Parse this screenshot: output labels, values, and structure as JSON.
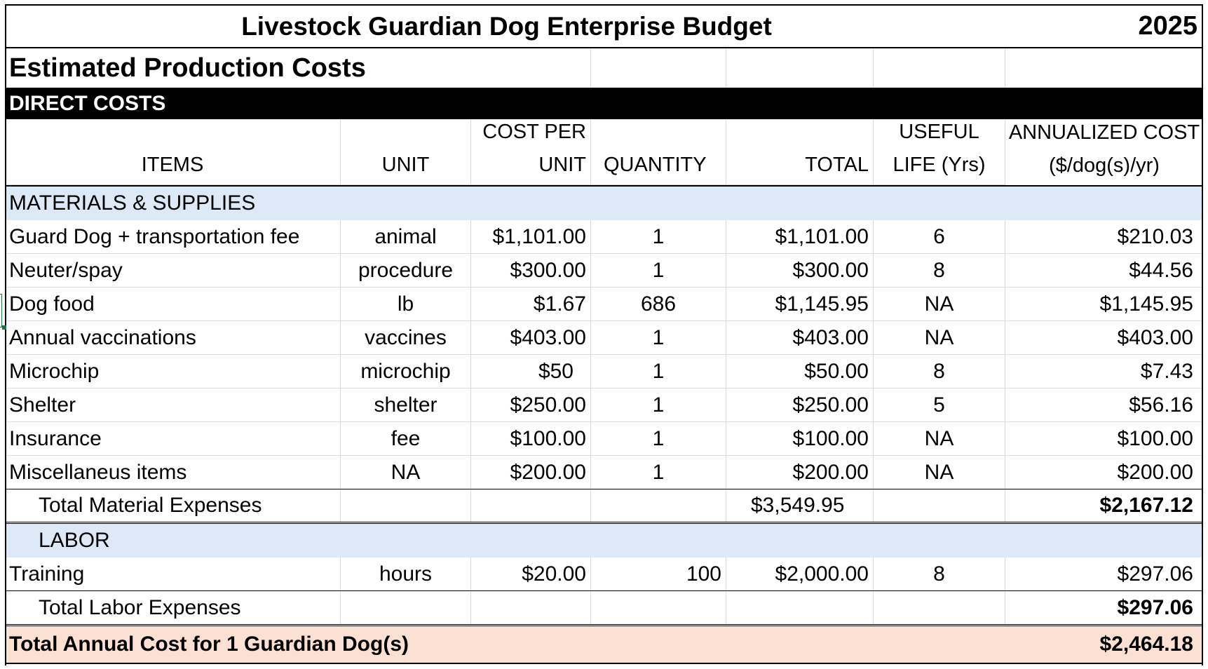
{
  "title": "Livestock Guardian Dog Enterprise Budget",
  "year": "2025",
  "section_title": "Estimated Production Costs",
  "direct_costs_label": "DIRECT COSTS",
  "headers": {
    "items": "ITEMS",
    "unit": "UNIT",
    "cost_per_unit_line1": "COST PER",
    "cost_per_unit_line2": "UNIT",
    "quantity": "QUANTITY",
    "total": "TOTAL",
    "useful_life_line1": "USEFUL",
    "useful_life_line2": "LIFE (Yrs)",
    "annualized_line1": "ANNUALIZED COST",
    "annualized_line2": "($/dog(s)/yr)"
  },
  "materials_label": "MATERIALS & SUPPLIES",
  "materials": [
    {
      "item": "Guard Dog + transportation fee",
      "unit": "animal",
      "cost": "$1,101.00",
      "qty": "1",
      "total": "$1,101.00",
      "life": "6",
      "annual": "$210.03"
    },
    {
      "item": "Neuter/spay",
      "unit": "procedure",
      "cost": "$300.00",
      "qty": "1",
      "total": "$300.00",
      "life": "8",
      "annual": "$44.56"
    },
    {
      "item": "Dog food",
      "unit": "lb",
      "cost": "$1.67",
      "qty": "686",
      "total": "$1,145.95",
      "life": "NA",
      "annual": "$1,145.95"
    },
    {
      "item": "Annual vaccinations",
      "unit": "vaccines",
      "cost": "$403.00",
      "qty": "1",
      "total": "$403.00",
      "life": "NA",
      "annual": "$403.00"
    },
    {
      "item": "Microchip",
      "unit": "microchip",
      "cost": "$50",
      "qty": "1",
      "total": "$50.00",
      "life": "8",
      "annual": "$7.43"
    },
    {
      "item": "Shelter",
      "unit": "shelter",
      "cost": "$250.00",
      "qty": "1",
      "total": "$250.00",
      "life": "5",
      "annual": "$56.16"
    },
    {
      "item": "Insurance",
      "unit": "fee",
      "cost": "$100.00",
      "qty": "1",
      "total": "$100.00",
      "life": "NA",
      "annual": "$100.00"
    },
    {
      "item": "Miscellaneus items",
      "unit": "NA",
      "cost": "$200.00",
      "qty": "1",
      "total": "$200.00",
      "life": "NA",
      "annual": "$200.00"
    }
  ],
  "total_material": {
    "label": "Total Material Expenses",
    "total": "$3,549.95",
    "annual": "$2,167.12"
  },
  "labor_label": "LABOR",
  "labor": [
    {
      "item": "Training",
      "unit": "hours",
      "cost": "$20.00",
      "qty": "100",
      "total": "$2,000.00",
      "life": "8",
      "annual": "$297.06"
    }
  ],
  "total_labor": {
    "label": "Total Labor Expenses",
    "annual": "$297.06"
  },
  "grand_total": {
    "label": "Total Annual Cost for 1 Guardian Dog(s)",
    "annual": "$2,464.18"
  },
  "colors": {
    "band_blue": "#dde9f6",
    "total_peach": "#fbe1d4",
    "header_black": "#000000",
    "gridline": "#d9d9d9"
  }
}
